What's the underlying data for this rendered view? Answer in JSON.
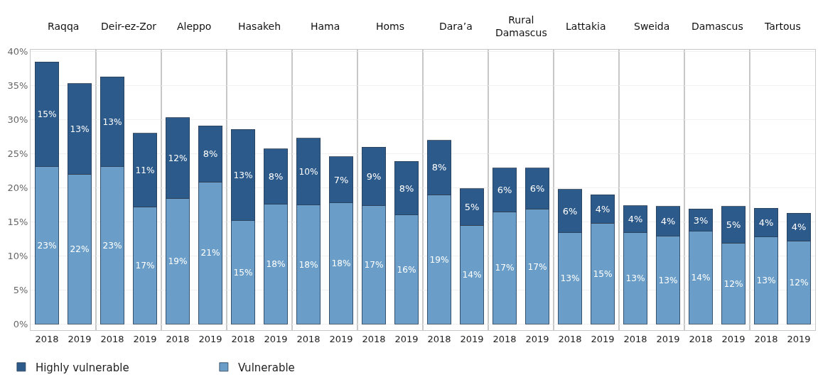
{
  "chart_data": [
    {
      "type": "bar",
      "title": "Raqqa",
      "categories": [
        "2018",
        "2019"
      ],
      "stacked": true,
      "ylim": [
        -0.9,
        40.3
      ],
      "yticks": [
        {
          "value": 0,
          "label": "0%"
        },
        {
          "value": 5,
          "label": "5%"
        },
        {
          "value": 10,
          "label": "10%"
        },
        {
          "value": 15,
          "label": "15%"
        },
        {
          "value": 20,
          "label": "20%"
        },
        {
          "value": 25,
          "label": "25%"
        },
        {
          "value": 30,
          "label": "30%"
        },
        {
          "value": 35,
          "label": "35%"
        },
        {
          "value": 40,
          "label": "40%"
        }
      ],
      "grid": "y",
      "legend": "bottom",
      "series": [
        {
          "name": "Vulnerable",
          "color": "#6a9ec8",
          "values": [
            23.1,
            22.0
          ],
          "value_labels": [
            "23%",
            "22%"
          ]
        },
        {
          "name": "Highly vulnerable",
          "color": "#2c5a8a",
          "values": [
            15.4,
            13.3
          ],
          "value_labels": [
            "15%",
            "13%"
          ]
        }
      ]
    },
    {
      "type": "bar",
      "title": "Deir-ez-Zor",
      "categories": [
        "2018",
        "2019"
      ],
      "stacked": true,
      "ylim": [
        -0.9,
        40.3
      ],
      "yticks": [
        0,
        5,
        10,
        15,
        20,
        25,
        30,
        35,
        40
      ],
      "grid": "y",
      "tick_labels": "x",
      "series": [
        {
          "color": "#6a9ec8",
          "values": [
            23.1,
            17.2
          ],
          "value_labels": [
            "23%",
            "17%"
          ]
        },
        {
          "color": "#2c5a8a",
          "values": [
            13.2,
            10.8
          ],
          "value_labels": [
            "13%",
            "11%"
          ]
        }
      ]
    },
    {
      "type": "bar",
      "title": "Aleppo",
      "categories": [
        "2018",
        "2019"
      ],
      "stacked": true,
      "ylim": [
        -0.9,
        40.3
      ],
      "yticks": [
        0,
        5,
        10,
        15,
        20,
        25,
        30,
        35,
        40
      ],
      "grid": "y",
      "tick_labels": "x",
      "series": [
        {
          "color": "#6a9ec8",
          "values": [
            18.5,
            20.9
          ],
          "value_labels": [
            "19%",
            "21%"
          ]
        },
        {
          "color": "#2c5a8a",
          "values": [
            11.8,
            8.2
          ],
          "value_labels": [
            "12%",
            "8%"
          ]
        }
      ]
    },
    {
      "type": "bar",
      "title": "Hasakeh",
      "categories": [
        "2018",
        "2019"
      ],
      "stacked": true,
      "ylim": [
        -0.9,
        40.3
      ],
      "yticks": [
        0,
        5,
        10,
        15,
        20,
        25,
        30,
        35,
        40
      ],
      "grid": "y",
      "tick_labels": "x",
      "series": [
        {
          "color": "#6a9ec8",
          "values": [
            15.2,
            17.6
          ],
          "value_labels": [
            "15%",
            "18%"
          ]
        },
        {
          "color": "#2c5a8a",
          "values": [
            13.4,
            8.1
          ],
          "value_labels": [
            "13%",
            "8%"
          ]
        }
      ]
    },
    {
      "type": "bar",
      "title": "Hama",
      "categories": [
        "2018",
        "2019"
      ],
      "stacked": true,
      "ylim": [
        -0.9,
        40.3
      ],
      "yticks": [
        0,
        5,
        10,
        15,
        20,
        25,
        30,
        35,
        40
      ],
      "grid": "y",
      "tick_labels": "x",
      "series": [
        {
          "color": "#6a9ec8",
          "values": [
            17.5,
            17.8
          ],
          "value_labels": [
            "18%",
            "18%"
          ]
        },
        {
          "color": "#2c5a8a",
          "values": [
            9.8,
            6.8
          ],
          "value_labels": [
            "10%",
            "7%"
          ]
        }
      ]
    },
    {
      "type": "bar",
      "title": "Homs",
      "categories": [
        "2018",
        "2019"
      ],
      "stacked": true,
      "ylim": [
        -0.9,
        40.3
      ],
      "yticks": [
        0,
        5,
        10,
        15,
        20,
        25,
        30,
        35,
        40
      ],
      "grid": "y",
      "tick_labels": "x",
      "series": [
        {
          "color": "#6a9ec8",
          "values": [
            17.4,
            16.0
          ],
          "value_labels": [
            "17%",
            "16%"
          ]
        },
        {
          "color": "#2c5a8a",
          "values": [
            8.6,
            7.9
          ],
          "value_labels": [
            "9%",
            "8%"
          ]
        }
      ]
    },
    {
      "type": "bar",
      "title": "Dara’a",
      "categories": [
        "2018",
        "2019"
      ],
      "stacked": true,
      "ylim": [
        -0.9,
        40.3
      ],
      "yticks": [
        0,
        5,
        10,
        15,
        20,
        25,
        30,
        35,
        40
      ],
      "grid": "y",
      "tick_labels": "x",
      "series": [
        {
          "color": "#6a9ec8",
          "values": [
            19.0,
            14.5
          ],
          "value_labels": [
            "19%",
            "14%"
          ]
        },
        {
          "color": "#2c5a8a",
          "values": [
            8.0,
            5.4
          ],
          "value_labels": [
            "8%",
            "5%"
          ]
        }
      ]
    },
    {
      "type": "bar",
      "title": "Rural Damascus",
      "categories": [
        "2018",
        "2019"
      ],
      "stacked": true,
      "ylim": [
        -0.9,
        40.3
      ],
      "yticks": [
        0,
        5,
        10,
        15,
        20,
        25,
        30,
        35,
        40
      ],
      "grid": "y",
      "tick_labels": "x",
      "series": [
        {
          "color": "#6a9ec8",
          "values": [
            16.5,
            16.9
          ],
          "value_labels": [
            "17%",
            "17%"
          ]
        },
        {
          "color": "#2c5a8a",
          "values": [
            6.4,
            6.0
          ],
          "value_labels": [
            "6%",
            "6%"
          ]
        }
      ]
    },
    {
      "type": "bar",
      "title": "Lattakia",
      "categories": [
        "2018",
        "2019"
      ],
      "stacked": true,
      "ylim": [
        -0.9,
        40.3
      ],
      "yticks": [
        0,
        5,
        10,
        15,
        20,
        25,
        30,
        35,
        40
      ],
      "grid": "y",
      "tick_labels": "x",
      "series": [
        {
          "color": "#6a9ec8",
          "values": [
            13.4,
            14.8
          ],
          "value_labels": [
            "13%",
            "15%"
          ]
        },
        {
          "color": "#2c5a8a",
          "values": [
            6.4,
            4.2
          ],
          "value_labels": [
            "6%",
            "4%"
          ]
        }
      ]
    },
    {
      "type": "bar",
      "title": "Sweida",
      "categories": [
        "2018",
        "2019"
      ],
      "stacked": true,
      "ylim": [
        -0.9,
        40.3
      ],
      "yticks": [
        0,
        5,
        10,
        15,
        20,
        25,
        30,
        35,
        40
      ],
      "grid": "y",
      "tick_labels": "x",
      "series": [
        {
          "color": "#6a9ec8",
          "values": [
            13.4,
            12.9
          ],
          "value_labels": [
            "13%",
            "13%"
          ]
        },
        {
          "color": "#2c5a8a",
          "values": [
            4.0,
            4.4
          ],
          "value_labels": [
            "4%",
            "4%"
          ]
        }
      ]
    },
    {
      "type": "bar",
      "title": "Damascus",
      "categories": [
        "2018",
        "2019"
      ],
      "stacked": true,
      "ylim": [
        -0.9,
        40.3
      ],
      "yticks": [
        0,
        5,
        10,
        15,
        20,
        25,
        30,
        35,
        40
      ],
      "grid": "y",
      "tick_labels": "x",
      "series": [
        {
          "color": "#6a9ec8",
          "values": [
            13.6,
            11.9
          ],
          "value_labels": [
            "14%",
            "12%"
          ]
        },
        {
          "color": "#2c5a8a",
          "values": [
            3.3,
            5.4
          ],
          "value_labels": [
            "3%",
            "5%"
          ]
        }
      ]
    },
    {
      "type": "bar",
      "title": "Tartous",
      "categories": [
        "2018",
        "2019"
      ],
      "stacked": true,
      "ylim": [
        -0.9,
        40.3
      ],
      "yticks": [
        0,
        5,
        10,
        15,
        20,
        25,
        30,
        35,
        40
      ],
      "grid": "y",
      "tick_labels": "x",
      "series": [
        {
          "color": "#6a9ec8",
          "values": [
            12.8,
            12.2
          ],
          "value_labels": [
            "13%",
            "12%"
          ]
        },
        {
          "color": "#2c5a8a",
          "values": [
            4.2,
            4.1
          ],
          "value_labels": [
            "4%",
            "4%"
          ]
        }
      ]
    }
  ]
}
